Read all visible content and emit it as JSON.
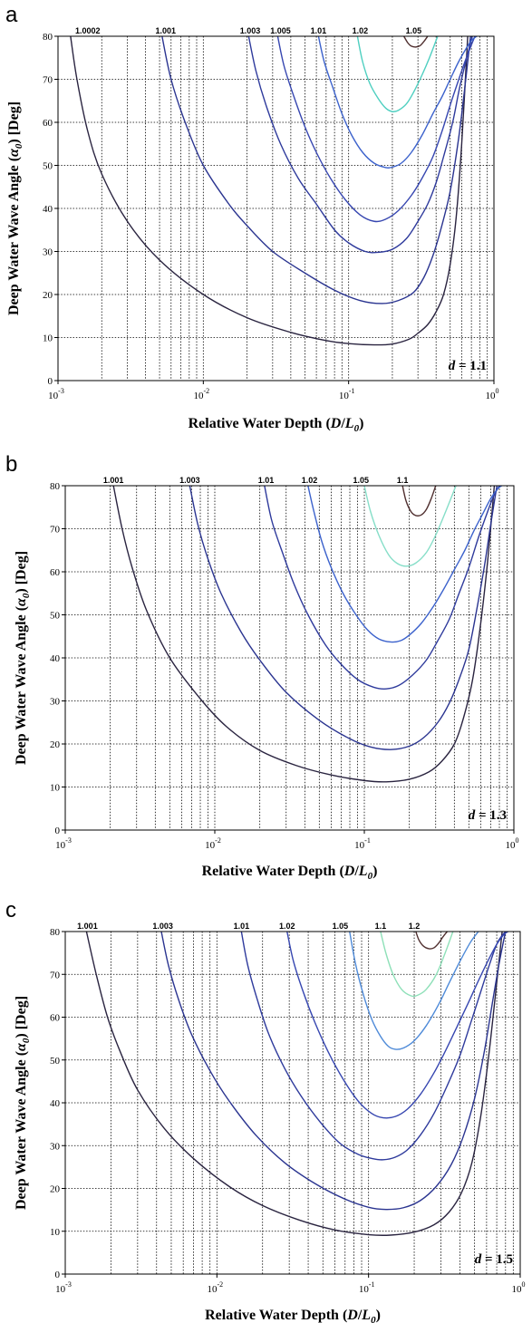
{
  "chart_data": [
    {
      "type": "line",
      "panel": "a",
      "xlabel": "Relative Water Depth (D/L0)",
      "ylabel": "Deep Water Wave Angle (α0) [Deg]",
      "xscale": "log",
      "xlim": [
        0.001,
        1
      ],
      "ylim": [
        0,
        80
      ],
      "yticks": [
        0,
        10,
        20,
        30,
        40,
        50,
        60,
        70,
        80
      ],
      "xticks": [
        0.001,
        0.01,
        0.1,
        1
      ],
      "xtick_labels": [
        {
          "base": "10",
          "exp": "-3"
        },
        {
          "base": "10",
          "exp": "-2"
        },
        {
          "base": "10",
          "exp": "-1"
        },
        {
          "base": "10",
          "exp": "0"
        }
      ],
      "grid": true,
      "annotation": {
        "var": "d",
        "text": " = 1.1"
      },
      "series": [
        {
          "name": "1.0002",
          "color": "#2a2440",
          "x": [
            0.00122,
            0.00135,
            0.0016,
            0.002,
            0.003,
            0.005,
            0.01,
            0.02,
            0.04,
            0.07,
            0.1,
            0.15,
            0.2,
            0.26,
            0.3,
            0.35,
            0.4,
            0.45,
            0.5,
            0.55,
            0.6,
            0.66
          ],
          "y": [
            80,
            70,
            58,
            48,
            37,
            28,
            20,
            14.6,
            11.2,
            9.3,
            8.6,
            8.3,
            8.5,
            9.6,
            11,
            13,
            16,
            20,
            27,
            38,
            55,
            80
          ]
        },
        {
          "name": "1.001",
          "color": "#2a3490",
          "x": [
            0.0052,
            0.006,
            0.0075,
            0.01,
            0.015,
            0.02,
            0.03,
            0.05,
            0.08,
            0.12,
            0.17,
            0.22,
            0.28,
            0.33,
            0.38,
            0.43,
            0.5,
            0.57,
            0.63,
            0.69
          ],
          "y": [
            80,
            70,
            60,
            50,
            41,
            36,
            30,
            25,
            21,
            18.6,
            17.9,
            18.6,
            20.5,
            24,
            29,
            35,
            44,
            56,
            68,
            80
          ]
        },
        {
          "name": "1.003",
          "color": "#2e3a9c",
          "x": [
            0.0205,
            0.023,
            0.027,
            0.034,
            0.045,
            0.06,
            0.08,
            0.1,
            0.13,
            0.16,
            0.2,
            0.25,
            0.3,
            0.35,
            0.4,
            0.45,
            0.52,
            0.58,
            0.65,
            0.71
          ],
          "y": [
            80,
            72,
            64,
            55,
            47,
            41,
            35,
            32,
            30,
            29.8,
            30.5,
            33,
            37,
            41,
            46,
            52,
            60,
            68,
            75,
            80
          ]
        },
        {
          "name": "1.005",
          "color": "#3646b0",
          "x": [
            0.0325,
            0.036,
            0.042,
            0.05,
            0.06,
            0.075,
            0.095,
            0.12,
            0.15,
            0.18,
            0.22,
            0.27,
            0.32,
            0.38,
            0.44,
            0.5,
            0.56,
            0.63,
            0.7,
            0.74
          ],
          "y": [
            80,
            73,
            66,
            59,
            53,
            47,
            42,
            38.5,
            37,
            37.5,
            39.5,
            43,
            47,
            52,
            58,
            64,
            69,
            74,
            78,
            80
          ]
        },
        {
          "name": "1.01",
          "color": "#3c62cc",
          "x": [
            0.062,
            0.068,
            0.078,
            0.09,
            0.105,
            0.125,
            0.15,
            0.18,
            0.2,
            0.23,
            0.27,
            0.32,
            0.38,
            0.44,
            0.5,
            0.57,
            0.64,
            0.7,
            0.76
          ],
          "y": [
            80,
            74,
            68,
            62,
            57,
            53,
            50.5,
            49.5,
            49.6,
            50.5,
            53,
            57,
            62,
            66,
            70,
            74,
            77,
            79,
            80
          ]
        },
        {
          "name": "1.02",
          "color": "#4ecfc0",
          "x": [
            0.115,
            0.125,
            0.14,
            0.16,
            0.18,
            0.2,
            0.22,
            0.25,
            0.28,
            0.32,
            0.36,
            0.41
          ],
          "y": [
            80,
            74,
            69,
            65.5,
            63.3,
            62.5,
            62.8,
            64.3,
            67,
            71,
            75,
            80
          ]
        },
        {
          "name": "1.05",
          "color": "#503030",
          "x": [
            0.24,
            0.255,
            0.27,
            0.29,
            0.31,
            0.33,
            0.35
          ],
          "y": [
            80,
            78.5,
            77.7,
            77.5,
            77.8,
            78.8,
            80
          ]
        }
      ],
      "contour_labels": [
        {
          "text": "1.0002",
          "x": 0.0016
        },
        {
          "text": "1.001",
          "x": 0.0055
        },
        {
          "text": "1.003",
          "x": 0.021
        },
        {
          "text": "1.005",
          "x": 0.034
        },
        {
          "text": "1.01",
          "x": 0.062
        },
        {
          "text": "1.02",
          "x": 0.12
        },
        {
          "text": "1.05",
          "x": 0.28
        }
      ]
    },
    {
      "type": "line",
      "panel": "b",
      "xlabel": "Relative Water Depth (D/L0)",
      "ylabel": "Deep Water Wave Angle (α0) [Deg]",
      "xscale": "log",
      "xlim": [
        0.001,
        1
      ],
      "ylim": [
        0,
        80
      ],
      "yticks": [
        0,
        10,
        20,
        30,
        40,
        50,
        60,
        70,
        80
      ],
      "xticks": [
        0.001,
        0.01,
        0.1,
        1
      ],
      "xtick_labels": [
        {
          "base": "10",
          "exp": "-3"
        },
        {
          "base": "10",
          "exp": "-2"
        },
        {
          "base": "10",
          "exp": "-1"
        },
        {
          "base": "10",
          "exp": "0"
        }
      ],
      "grid": true,
      "annotation": {
        "var": "d",
        "text": " = 1.3"
      },
      "series": [
        {
          "name": "1.001",
          "color": "#2a2440",
          "x": [
            0.0021,
            0.0024,
            0.0028,
            0.0035,
            0.005,
            0.008,
            0.012,
            0.02,
            0.035,
            0.06,
            0.1,
            0.14,
            0.2,
            0.27,
            0.33,
            0.4,
            0.46,
            0.53,
            0.6,
            0.67,
            0.74
          ],
          "y": [
            80,
            70,
            61,
            51,
            40,
            30.5,
            24,
            18.5,
            15,
            12.8,
            11.5,
            11.2,
            11.8,
            13.5,
            16,
            20,
            26,
            35,
            48,
            63,
            80
          ]
        },
        {
          "name": "1.003",
          "color": "#2a3490",
          "x": [
            0.0068,
            0.0077,
            0.009,
            0.011,
            0.015,
            0.02,
            0.03,
            0.05,
            0.08,
            0.11,
            0.15,
            0.2,
            0.25,
            0.31,
            0.37,
            0.43,
            0.5,
            0.57,
            0.64,
            0.7,
            0.77
          ],
          "y": [
            80,
            71,
            63,
            55,
            46,
            39.5,
            32,
            25.5,
            21.2,
            19.3,
            18.7,
            19.5,
            21.5,
            25,
            29.5,
            35,
            42,
            52,
            62,
            71,
            80
          ]
        },
        {
          "name": "1.01",
          "color": "#2e3a9c",
          "x": [
            0.0215,
            0.024,
            0.028,
            0.034,
            0.042,
            0.055,
            0.07,
            0.09,
            0.115,
            0.14,
            0.17,
            0.21,
            0.26,
            0.31,
            0.37,
            0.43,
            0.5,
            0.58,
            0.66,
            0.73,
            0.8
          ],
          "y": [
            80,
            72,
            65,
            57,
            50,
            43,
            38.5,
            35,
            33.2,
            32.8,
            33.6,
            36,
            39.5,
            44,
            49,
            55,
            61,
            68,
            73.5,
            77.5,
            80
          ]
        },
        {
          "name": "1.02",
          "color": "#3c62cc",
          "x": [
            0.042,
            0.046,
            0.052,
            0.06,
            0.072,
            0.088,
            0.105,
            0.125,
            0.15,
            0.175,
            0.2,
            0.24,
            0.29,
            0.34,
            0.4,
            0.47,
            0.54,
            0.62,
            0.7,
            0.78,
            0.83
          ],
          "y": [
            80,
            74,
            67,
            61,
            55,
            50,
            46.5,
            44.4,
            43.7,
            44,
            45.3,
            48,
            52,
            56,
            60.5,
            65,
            69.5,
            73.5,
            77,
            79.3,
            80
          ]
        },
        {
          "name": "1.05",
          "color": "#86dec8",
          "x": [
            0.1,
            0.11,
            0.125,
            0.145,
            0.165,
            0.19,
            0.22,
            0.26,
            0.3,
            0.35,
            0.41
          ],
          "y": [
            80,
            74,
            68.5,
            64,
            62,
            61.3,
            62,
            64.5,
            68.5,
            74,
            80
          ]
        },
        {
          "name": "1.1",
          "color": "#503030",
          "x": [
            0.18,
            0.19,
            0.205,
            0.22,
            0.24,
            0.26,
            0.28,
            0.3
          ],
          "y": [
            80,
            76.5,
            74,
            73.1,
            73.2,
            74.5,
            77,
            80
          ]
        }
      ],
      "contour_labels": [
        {
          "text": "1.001",
          "x": 0.0021
        },
        {
          "text": "1.003",
          "x": 0.0068
        },
        {
          "text": "1.01",
          "x": 0.022
        },
        {
          "text": "1.02",
          "x": 0.043
        },
        {
          "text": "1.05",
          "x": 0.095
        },
        {
          "text": "1.1",
          "x": 0.18
        }
      ]
    },
    {
      "type": "line",
      "panel": "c",
      "xlabel": "Relative Water Depth (D/L0)",
      "ylabel": "Deep Water Wave Angle (α0) [Deg]",
      "xscale": "log",
      "xlim": [
        0.001,
        1
      ],
      "ylim": [
        0,
        80
      ],
      "yticks": [
        0,
        10,
        20,
        30,
        40,
        50,
        60,
        70,
        80
      ],
      "xticks": [
        0.001,
        0.01,
        0.1,
        1
      ],
      "xtick_labels": [
        {
          "base": "10",
          "exp": "-3"
        },
        {
          "base": "10",
          "exp": "-2"
        },
        {
          "base": "10",
          "exp": "-1"
        },
        {
          "base": "10",
          "exp": "0"
        }
      ],
      "grid": true,
      "annotation": {
        "var": "d",
        "text": " = 1.5"
      },
      "series": [
        {
          "name": "1.001",
          "color": "#2a2440",
          "x": [
            0.00138,
            0.0016,
            0.0019,
            0.0023,
            0.003,
            0.0045,
            0.007,
            0.012,
            0.02,
            0.035,
            0.06,
            0.1,
            0.14,
            0.2,
            0.27,
            0.34,
            0.41,
            0.48,
            0.55,
            0.62,
            0.69,
            0.76
          ],
          "y": [
            80,
            70,
            60,
            52,
            43,
            34,
            27,
            20.5,
            16,
            12.6,
            10.3,
            9.2,
            9.1,
            9.8,
            11.5,
            14.5,
            19,
            26,
            37,
            51,
            66,
            80
          ]
        },
        {
          "name": "1.003",
          "color": "#2a3490",
          "x": [
            0.0043,
            0.0048,
            0.0056,
            0.0068,
            0.009,
            0.012,
            0.018,
            0.028,
            0.045,
            0.07,
            0.1,
            0.13,
            0.17,
            0.22,
            0.28,
            0.35,
            0.42,
            0.5,
            0.58,
            0.66,
            0.73,
            0.8
          ],
          "y": [
            80,
            72,
            64,
            56,
            47.5,
            40.5,
            32.5,
            26,
            21,
            17.5,
            15.6,
            15.1,
            15.5,
            17.2,
            20.5,
            25.5,
            32,
            41,
            52,
            64,
            73,
            80
          ]
        },
        {
          "name": "1.01",
          "color": "#2e3a9c",
          "x": [
            0.0145,
            0.016,
            0.0185,
            0.022,
            0.028,
            0.036,
            0.048,
            0.065,
            0.085,
            0.105,
            0.125,
            0.15,
            0.18,
            0.22,
            0.27,
            0.33,
            0.4,
            0.47,
            0.55,
            0.63,
            0.71,
            0.8
          ],
          "y": [
            80,
            72,
            64,
            56,
            48,
            41.5,
            35.5,
            30.5,
            28,
            27,
            26.7,
            27.3,
            29,
            32.5,
            37.5,
            44,
            51,
            58.5,
            66,
            72.5,
            77.5,
            80
          ]
        },
        {
          "name": "1.02",
          "color": "#3646b0",
          "x": [
            0.029,
            0.032,
            0.037,
            0.044,
            0.054,
            0.068,
            0.085,
            0.105,
            0.125,
            0.15,
            0.18,
            0.22,
            0.27,
            0.32,
            0.38,
            0.45,
            0.53,
            0.62,
            0.7,
            0.78,
            0.83
          ],
          "y": [
            80,
            73,
            66,
            59,
            52,
            45.5,
            40.5,
            37.5,
            36.5,
            36.8,
            38.5,
            42,
            47,
            52,
            57.5,
            63,
            68.5,
            73.5,
            77,
            79.3,
            80
          ]
        },
        {
          "name": "1.05",
          "color": "#4e8ad8",
          "x": [
            0.075,
            0.082,
            0.092,
            0.105,
            0.12,
            0.135,
            0.15,
            0.17,
            0.2,
            0.24,
            0.29,
            0.34,
            0.4,
            0.47,
            0.53
          ],
          "y": [
            80,
            72.5,
            65.5,
            59.5,
            55.5,
            53.2,
            52.5,
            52.8,
            54.5,
            58,
            63,
            68,
            73,
            77.5,
            80
          ]
        },
        {
          "name": "1.1",
          "color": "#8ee0b8",
          "x": [
            0.12,
            0.13,
            0.145,
            0.165,
            0.19,
            0.21,
            0.24,
            0.28,
            0.32,
            0.36
          ],
          "y": [
            80,
            75,
            70,
            66.5,
            65,
            65.1,
            66.5,
            70,
            75,
            80
          ]
        },
        {
          "name": "1.2",
          "color": "#503030",
          "x": [
            0.205,
            0.215,
            0.23,
            0.25,
            0.27,
            0.29,
            0.31,
            0.33
          ],
          "y": [
            80,
            78,
            76.6,
            76,
            76.2,
            77.3,
            78.8,
            80
          ]
        }
      ],
      "contour_labels": [
        {
          "text": "1.001",
          "x": 0.0014
        },
        {
          "text": "1.003",
          "x": 0.0044
        },
        {
          "text": "1.01",
          "x": 0.0145
        },
        {
          "text": "1.02",
          "x": 0.029
        },
        {
          "text": "1.05",
          "x": 0.065
        },
        {
          "text": "1.1",
          "x": 0.12
        },
        {
          "text": "1.2",
          "x": 0.2
        }
      ]
    }
  ]
}
